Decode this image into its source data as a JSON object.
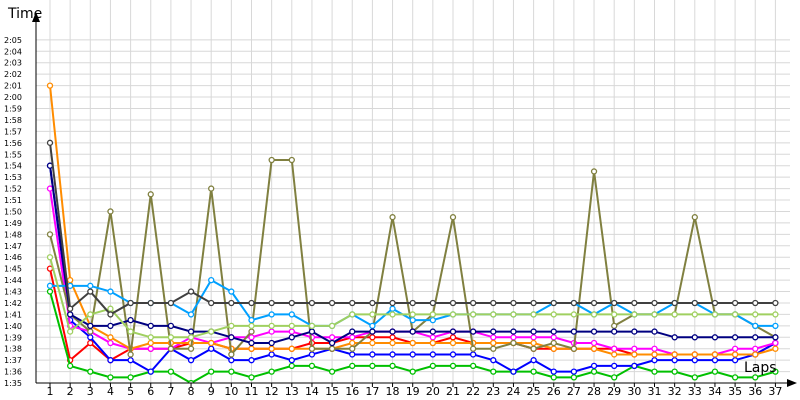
{
  "chart_data": {
    "type": "line",
    "ylabel": "Time",
    "xlabel": "Laps",
    "x": [
      1,
      2,
      3,
      4,
      5,
      6,
      7,
      8,
      9,
      10,
      11,
      12,
      13,
      14,
      15,
      16,
      17,
      18,
      19,
      20,
      21,
      22,
      23,
      24,
      25,
      26,
      27,
      28,
      29,
      30,
      31,
      32,
      33,
      34,
      35,
      36,
      37
    ],
    "x_tick_labels": [
      "1",
      "2",
      "3",
      "4",
      "5",
      "6",
      "7",
      "8",
      "9",
      "10",
      "11",
      "12",
      "13",
      "14",
      "15",
      "16",
      "17",
      "18",
      "19",
      "20",
      "21",
      "22",
      "23",
      "24",
      "25",
      "26",
      "27",
      "28",
      "29",
      "30",
      "31",
      "32",
      "33",
      "34",
      "35",
      "36",
      "37"
    ],
    "y_tick_labels": [
      "1:35",
      "1:36",
      "1:37",
      "1:38",
      "1:39",
      "1:40",
      "1:41",
      "1:42",
      "1:43",
      "1:44",
      "1:45",
      "1:46",
      "1:47",
      "1:48",
      "1:49",
      "1:50",
      "1:51",
      "1:52",
      "1:53",
      "1:54",
      "1:55",
      "1:56",
      "1:57",
      "1:58",
      "1:59",
      "2:00",
      "2:01",
      "2:02",
      "2:03",
      "2:04",
      "2:05"
    ],
    "y_unit": "seconds",
    "ylim": [
      94,
      126
    ],
    "grid": true,
    "series": [
      {
        "color": "#ff0000",
        "values": [
          105,
          97,
          98.5,
          97,
          98,
          98,
          98,
          98.5,
          98.5,
          98,
          98,
          98,
          98,
          98.5,
          98.5,
          99,
          99,
          99,
          98.5,
          98.5,
          99,
          98.5,
          98.5,
          98.5,
          98,
          98,
          98,
          98,
          98,
          97.5,
          97.5,
          97.5,
          97.5,
          97.5,
          97.5,
          97.5,
          98.5
        ]
      },
      {
        "color": "#00c000",
        "values": [
          103,
          96.5,
          96,
          95.5,
          95.5,
          96,
          96,
          95,
          96,
          96,
          95.5,
          96,
          96.5,
          96.5,
          96,
          96.5,
          96.5,
          96.5,
          96,
          96.5,
          96.5,
          96.5,
          96,
          96,
          96,
          95.5,
          95.5,
          96,
          95.5,
          96.5,
          96,
          96,
          95.5,
          96,
          95.5,
          95.5,
          96
        ]
      },
      {
        "color": "#0000ff",
        "values": [
          114,
          100.5,
          99,
          97,
          97,
          96,
          98,
          97,
          98,
          97,
          97,
          97.5,
          97,
          97.5,
          98,
          97.5,
          97.5,
          97.5,
          97.5,
          97.5,
          97.5,
          97.5,
          97,
          96,
          97,
          96,
          96,
          96.5,
          96.5,
          96.5,
          97,
          97,
          97,
          97,
          97,
          97.5,
          98.5
        ]
      },
      {
        "color": "#ff00ff",
        "values": [
          112,
          100,
          99.5,
          98.5,
          98,
          98,
          98,
          99,
          98.5,
          99,
          99,
          99.5,
          99.5,
          99,
          99,
          99,
          99.5,
          99.5,
          99.5,
          99,
          99.5,
          99.5,
          99,
          99,
          99,
          99,
          98.5,
          98.5,
          98,
          98,
          98,
          97.5,
          97.5,
          97.5,
          98,
          98,
          98.5
        ]
      },
      {
        "color": "#ff8c00",
        "values": [
          121,
          104,
          100,
          99,
          98,
          98.5,
          98.5,
          98.5,
          98.5,
          98,
          98,
          98,
          98,
          98,
          98,
          98.5,
          98.5,
          98.5,
          98.5,
          98.5,
          98.5,
          98.5,
          98.5,
          98.5,
          98.5,
          98,
          98,
          98,
          97.5,
          97.5,
          97.5,
          97.5,
          97.5,
          97.5,
          97.5,
          97.5,
          98
        ]
      },
      {
        "color": "#808040",
        "values": [
          108,
          101,
          99.5,
          110,
          97.5,
          111.5,
          98,
          98,
          112,
          97.5,
          99.5,
          114.5,
          114.5,
          98,
          98,
          98,
          99.5,
          109.5,
          99.5,
          101,
          109.5,
          98,
          98,
          98.5,
          98,
          98.5,
          98,
          113.5,
          100,
          101,
          101,
          101,
          109.5,
          101,
          101,
          100,
          99
        ]
      },
      {
        "color": "#00a0ff",
        "values": [
          103.5,
          103.5,
          103.5,
          103,
          102,
          102,
          102,
          101,
          104,
          103,
          100.5,
          101,
          101,
          100,
          100,
          101,
          100,
          101.5,
          100.5,
          100.5,
          101,
          101,
          101,
          101,
          101,
          102,
          102,
          101,
          102,
          101,
          101,
          102,
          102,
          101,
          101,
          100,
          100
        ]
      },
      {
        "color": "#000080",
        "values": [
          114,
          101,
          100,
          100,
          100.5,
          100,
          100,
          99.5,
          99.5,
          99,
          98.5,
          98.5,
          99,
          99.5,
          98.5,
          99.5,
          99.5,
          99.5,
          99.5,
          99.5,
          99.5,
          99.5,
          99.5,
          99.5,
          99.5,
          99.5,
          99.5,
          99.5,
          99.5,
          99.5,
          99.5,
          99,
          99,
          99,
          99,
          99,
          99
        ]
      },
      {
        "color": "#a0d060",
        "values": [
          106,
          99.5,
          101,
          101.5,
          99.5,
          99,
          99,
          99,
          99.5,
          100,
          100,
          100,
          100,
          100,
          100,
          101,
          101,
          101,
          101,
          101,
          101,
          101,
          101,
          101,
          101,
          101,
          101,
          101,
          101,
          101,
          101,
          101,
          101,
          101,
          101,
          101,
          101
        ]
      },
      {
        "color": "#404040",
        "values": [
          116,
          101.5,
          103,
          101,
          102,
          102,
          102,
          103,
          102,
          102,
          102,
          102,
          102,
          102,
          102,
          102,
          102,
          102,
          102,
          102,
          102,
          102,
          102,
          102,
          102,
          102,
          102,
          102,
          102,
          102,
          102,
          102,
          102,
          102,
          102,
          102,
          102
        ]
      }
    ]
  }
}
